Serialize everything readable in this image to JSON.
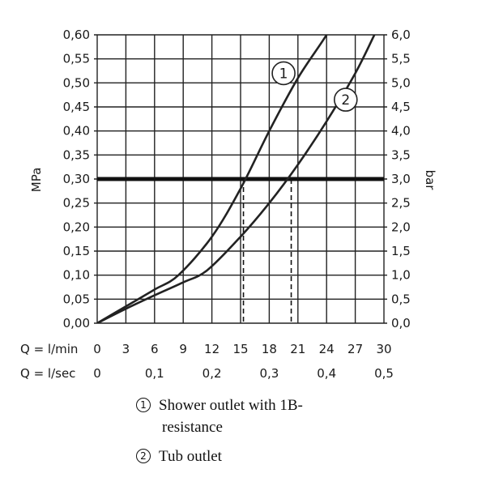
{
  "chart_data": {
    "type": "line",
    "y_left_label": "MPa",
    "y_right_label": "bar",
    "x_label_primary": "Q = l/min",
    "x_label_secondary": "Q = l/sec",
    "x_range": [
      0,
      30
    ],
    "y_range": [
      0,
      0.6
    ],
    "x_ticks": [
      "0",
      "3",
      "6",
      "9",
      "12",
      "15",
      "18",
      "21",
      "24",
      "27",
      "30"
    ],
    "x_ticks_values": [
      0,
      3,
      6,
      9,
      12,
      15,
      18,
      21,
      24,
      27,
      30
    ],
    "x2_ticks": [
      "0",
      "0,1",
      "0,2",
      "0,3",
      "0,4",
      "0,5"
    ],
    "x2_ticks_values": [
      0,
      6,
      12,
      18,
      24,
      30
    ],
    "y_ticks_left": [
      "0,00",
      "0,05",
      "0,10",
      "0,15",
      "0,20",
      "0,25",
      "0,30",
      "0,35",
      "0,40",
      "0,45",
      "0,50",
      "0,55",
      "0,60"
    ],
    "y_ticks_right": [
      "0,0",
      "0,5",
      "1,0",
      "1,5",
      "2,0",
      "2,5",
      "3,0",
      "3,5",
      "4,0",
      "4,5",
      "5,0",
      "5,5",
      "6,0"
    ],
    "y_ticks_values": [
      0,
      0.05,
      0.1,
      0.15,
      0.2,
      0.25,
      0.3,
      0.35,
      0.4,
      0.45,
      0.5,
      0.55,
      0.6
    ],
    "grid": true,
    "reference_line_y": 0.3,
    "series": [
      {
        "marker": "1",
        "x": [
          0,
          3,
          6,
          8.5,
          12,
          15,
          18,
          21,
          24,
          26
        ],
        "y": [
          0,
          0.035,
          0.07,
          0.1,
          0.18,
          0.28,
          0.4,
          0.51,
          0.6,
          0.67
        ],
        "label_at": [
          19.5,
          0.52
        ],
        "crossing_x": 15.3
      },
      {
        "marker": "2",
        "x": [
          0,
          3,
          6,
          9,
          11.5,
          15,
          18,
          21,
          24,
          27,
          29
        ],
        "y": [
          0,
          0.03,
          0.058,
          0.085,
          0.11,
          0.18,
          0.25,
          0.33,
          0.42,
          0.52,
          0.6
        ],
        "label_at": [
          26,
          0.465
        ],
        "crossing_x": 20.3
      }
    ]
  },
  "legend": {
    "items": [
      {
        "num": "1",
        "line1": "Shower outlet with 1B-",
        "line2": "resistance"
      },
      {
        "num": "2",
        "line1": "Tub outlet",
        "line2": ""
      }
    ]
  }
}
